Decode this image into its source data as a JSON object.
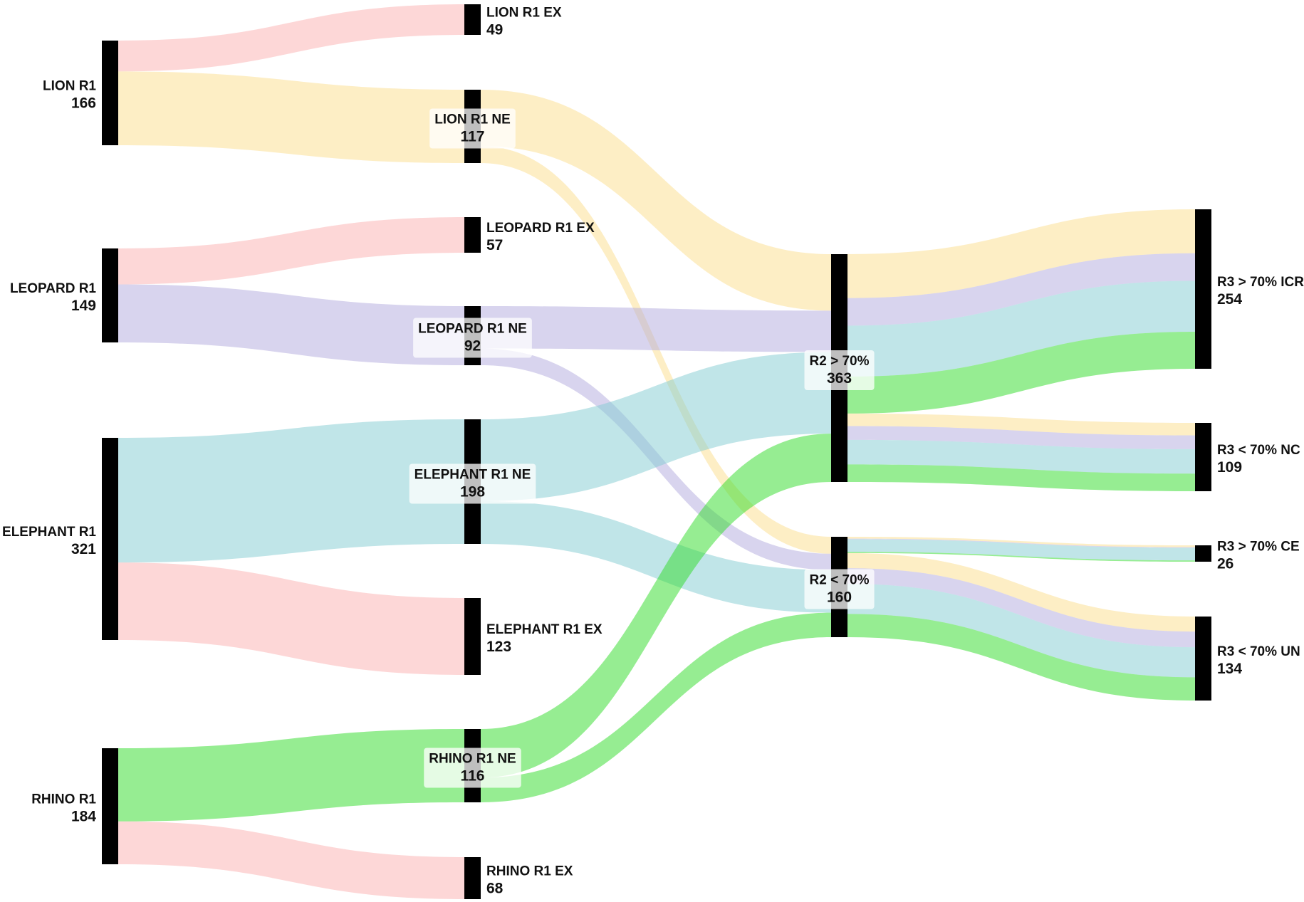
{
  "colors": {
    "lion": "#fcdd8b",
    "leopard": "#b1aade",
    "elephant": "#82cbd1",
    "rhino": "#2ddc26",
    "excluded": "#fbafaf",
    "node": "#000000",
    "label_box": "#ffffff"
  },
  "nodes": [
    {
      "id": "lion_r1",
      "label": "LION R1",
      "value": "166",
      "column": 0
    },
    {
      "id": "leopard_r1",
      "label": "LEOPARD R1",
      "value": "149",
      "column": 0
    },
    {
      "id": "elephant_r1",
      "label": "ELEPHANT R1",
      "value": "321",
      "column": 0
    },
    {
      "id": "rhino_r1",
      "label": "RHINO R1",
      "value": "184",
      "column": 0
    },
    {
      "id": "lion_ex",
      "label": "LION R1 EX",
      "value": "49",
      "column": 1
    },
    {
      "id": "lion_ne",
      "label": "LION R1 NE",
      "value": "117",
      "column": 1
    },
    {
      "id": "leopard_ex",
      "label": "LEOPARD R1 EX",
      "value": "57",
      "column": 1
    },
    {
      "id": "leopard_ne",
      "label": "LEOPARD R1 NE",
      "value": "92",
      "column": 1
    },
    {
      "id": "elephant_ne",
      "label": "ELEPHANT R1 NE",
      "value": "198",
      "column": 1
    },
    {
      "id": "elephant_ex",
      "label": "ELEPHANT R1 EX",
      "value": "123",
      "column": 1
    },
    {
      "id": "rhino_ne",
      "label": "RHINO R1 NE",
      "value": "116",
      "column": 1
    },
    {
      "id": "rhino_ex",
      "label": "RHINO R1 EX",
      "value": "68",
      "column": 1
    },
    {
      "id": "r2_gt",
      "label": "R2 > 70%",
      "value": "363",
      "column": 2
    },
    {
      "id": "r2_lt",
      "label": "R2 < 70%",
      "value": "160",
      "column": 2
    },
    {
      "id": "icr",
      "label": "R3 > 70% ICR",
      "value": "254",
      "column": 3
    },
    {
      "id": "nc",
      "label": "R3 < 70% NC",
      "value": "109",
      "column": 3
    },
    {
      "id": "ce",
      "label": "R3 > 70% CE",
      "value": "26",
      "column": 3
    },
    {
      "id": "un",
      "label": "R3 < 70% UN",
      "value": "134",
      "column": 3
    }
  ],
  "links": [
    {
      "source": "lion_r1",
      "target": "lion_ex",
      "value": 49,
      "group": "excluded"
    },
    {
      "source": "lion_r1",
      "target": "lion_ne",
      "value": 117,
      "group": "lion"
    },
    {
      "source": "leopard_r1",
      "target": "leopard_ex",
      "value": 57,
      "group": "excluded"
    },
    {
      "source": "leopard_r1",
      "target": "leopard_ne",
      "value": 92,
      "group": "leopard"
    },
    {
      "source": "elephant_r1",
      "target": "elephant_ne",
      "value": 198,
      "group": "elephant"
    },
    {
      "source": "elephant_r1",
      "target": "elephant_ex",
      "value": 123,
      "group": "excluded"
    },
    {
      "source": "rhino_r1",
      "target": "rhino_ne",
      "value": 116,
      "group": "rhino"
    },
    {
      "source": "rhino_r1",
      "target": "rhino_ex",
      "value": 68,
      "group": "excluded"
    },
    {
      "source": "lion_ne",
      "target": "r2_gt",
      "value": 90,
      "group": "lion"
    },
    {
      "source": "lion_ne",
      "target": "r2_lt",
      "value": 27,
      "group": "lion"
    },
    {
      "source": "leopard_ne",
      "target": "r2_gt",
      "value": 66,
      "group": "leopard"
    },
    {
      "source": "leopard_ne",
      "target": "r2_lt",
      "value": 26,
      "group": "leopard"
    },
    {
      "source": "elephant_ne",
      "target": "r2_gt",
      "value": 130,
      "group": "elephant"
    },
    {
      "source": "elephant_ne",
      "target": "r2_lt",
      "value": 68,
      "group": "elephant"
    },
    {
      "source": "rhino_ne",
      "target": "r2_gt",
      "value": 77,
      "group": "rhino"
    },
    {
      "source": "rhino_ne",
      "target": "r2_lt",
      "value": 39,
      "group": "rhino"
    },
    {
      "source": "r2_gt",
      "target": "icr",
      "value": 70,
      "group": "lion"
    },
    {
      "source": "r2_gt",
      "target": "icr",
      "value": 44,
      "group": "leopard"
    },
    {
      "source": "r2_gt",
      "target": "icr",
      "value": 81,
      "group": "elephant"
    },
    {
      "source": "r2_gt",
      "target": "icr",
      "value": 59,
      "group": "rhino"
    },
    {
      "source": "r2_gt",
      "target": "nc",
      "value": 20,
      "group": "lion"
    },
    {
      "source": "r2_gt",
      "target": "nc",
      "value": 22,
      "group": "leopard"
    },
    {
      "source": "r2_gt",
      "target": "nc",
      "value": 39,
      "group": "elephant"
    },
    {
      "source": "r2_gt",
      "target": "nc",
      "value": 28,
      "group": "rhino"
    },
    {
      "source": "r2_lt",
      "target": "ce",
      "value": 3,
      "group": "lion"
    },
    {
      "source": "r2_lt",
      "target": "ce",
      "value": 1,
      "group": "leopard"
    },
    {
      "source": "r2_lt",
      "target": "ce",
      "value": 20,
      "group": "elephant"
    },
    {
      "source": "r2_lt",
      "target": "ce",
      "value": 2,
      "group": "rhino"
    },
    {
      "source": "r2_lt",
      "target": "un",
      "value": 24,
      "group": "lion"
    },
    {
      "source": "r2_lt",
      "target": "un",
      "value": 25,
      "group": "leopard"
    },
    {
      "source": "r2_lt",
      "target": "un",
      "value": 48,
      "group": "elephant"
    },
    {
      "source": "r2_lt",
      "target": "un",
      "value": 37,
      "group": "rhino"
    }
  ]
}
